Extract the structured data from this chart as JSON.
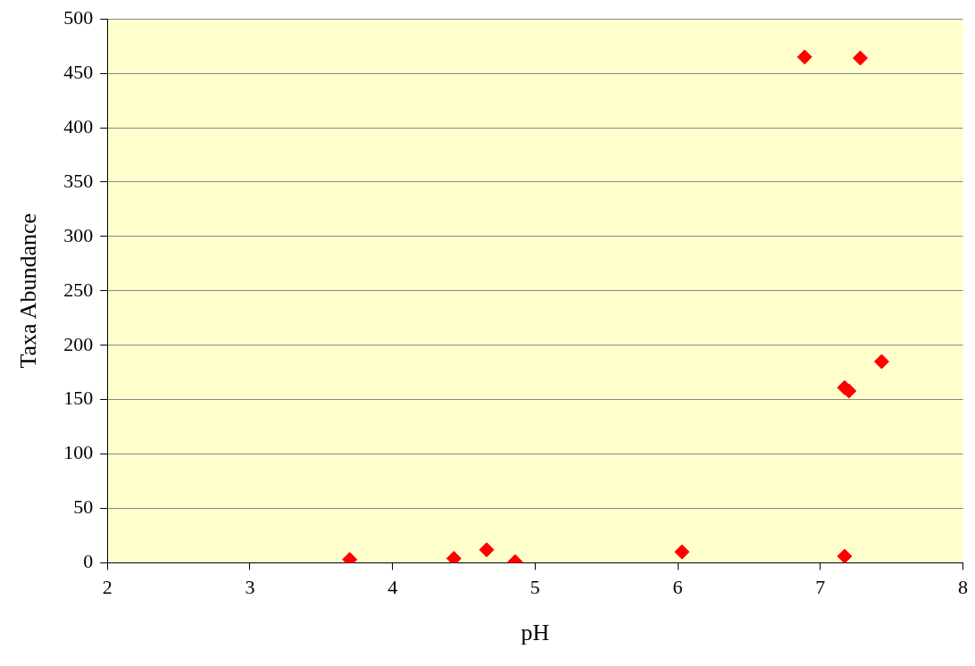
{
  "chart_data": {
    "type": "scatter",
    "xlabel": "pH",
    "ylabel": "Taxa Abundance",
    "x": [
      3.7,
      4.43,
      4.66,
      4.86,
      6.03,
      6.89,
      7.28,
      7.17,
      7.17,
      7.2,
      7.43
    ],
    "series": [
      {
        "color": "#ff0000",
        "values": [
          3,
          4,
          12,
          1,
          10,
          465,
          464,
          6,
          161,
          158,
          185
        ]
      }
    ],
    "xlim": [
      2,
      8
    ],
    "xticks": [
      2,
      3,
      4,
      5,
      6,
      7,
      8
    ],
    "ylim": [
      0,
      500
    ],
    "yticks": [
      0,
      50,
      100,
      150,
      200,
      250,
      300,
      350,
      400,
      450,
      500
    ],
    "grid": "y",
    "legend": false,
    "marker": "diamond"
  }
}
